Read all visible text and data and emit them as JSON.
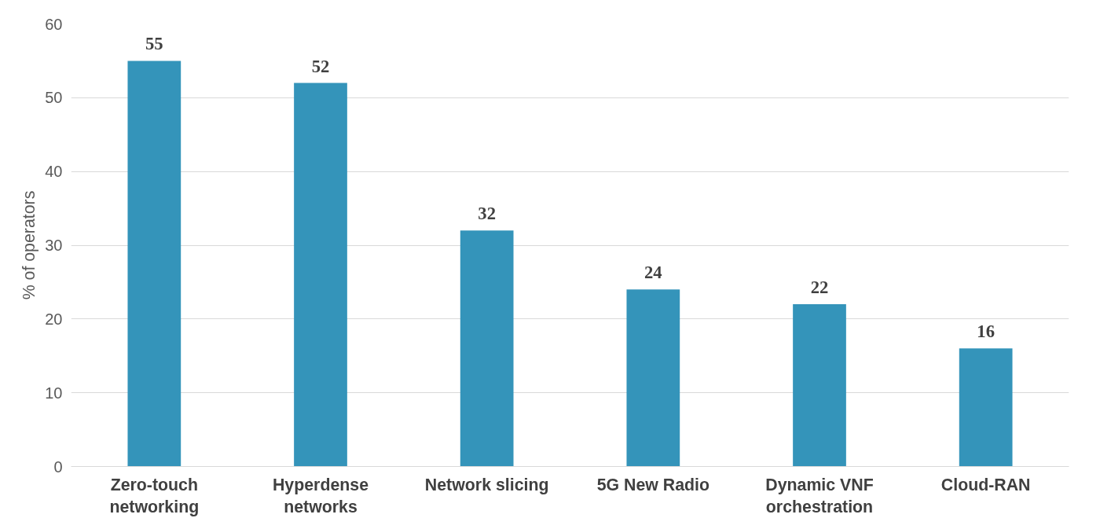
{
  "chart_data": {
    "type": "bar",
    "ylabel": "% of operators",
    "categories": [
      "Zero-touch networking",
      "Hyperdense networks",
      "Network slicing",
      "5G New Radio",
      "Dynamic VNF orchestration",
      "Cloud-RAN"
    ],
    "values": [
      55,
      52,
      32,
      24,
      22,
      16
    ],
    "color": "#3494ba",
    "ylim": [
      0,
      60
    ],
    "yticks": [
      0,
      10,
      20,
      30,
      40,
      50,
      60
    ],
    "grid": "y",
    "data_labels": true
  }
}
